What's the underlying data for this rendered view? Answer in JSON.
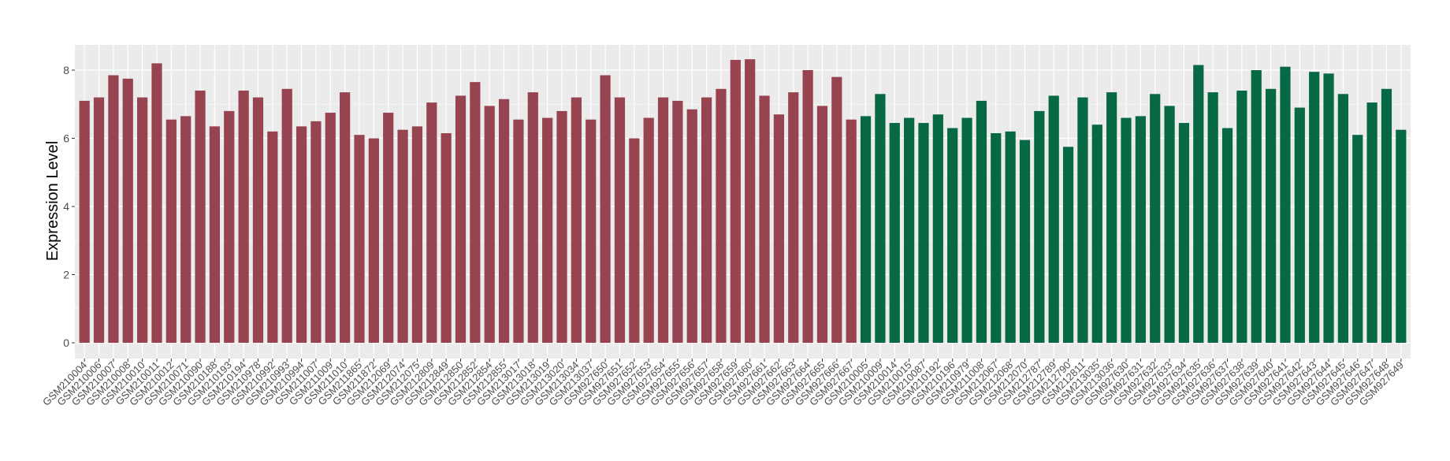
{
  "chart_data": {
    "type": "bar",
    "title": "",
    "xlabel": "",
    "ylabel": "Expression Level",
    "ylim": [
      0,
      8.6
    ],
    "yticks": [
      0,
      2,
      4,
      6,
      8
    ],
    "grid": true,
    "legend": "none",
    "colors": {
      "group1": "#984450",
      "group2": "#076944",
      "panel": "#EBEBEB",
      "grid": "#FFFFFF"
    },
    "categories": [
      "GSM210004",
      "GSM210006",
      "GSM210007",
      "GSM210008",
      "GSM210010",
      "GSM210011",
      "GSM210012",
      "GSM210071",
      "GSM210090",
      "GSM210188",
      "GSM210193",
      "GSM210194",
      "GSM210978",
      "GSM210992",
      "GSM210993",
      "GSM210994",
      "GSM211007",
      "GSM211009",
      "GSM211010",
      "GSM211865",
      "GSM211872",
      "GSM212069",
      "GSM212074",
      "GSM212075",
      "GSM212809",
      "GSM212849",
      "GSM212850",
      "GSM212852",
      "GSM212854",
      "GSM212855",
      "GSM213017",
      "GSM213018",
      "GSM213019",
      "GSM213020",
      "GSM213034",
      "GSM213037",
      "GSM927650",
      "GSM927651",
      "GSM927652",
      "GSM927653",
      "GSM927654",
      "GSM927655",
      "GSM927656",
      "GSM927657",
      "GSM927658",
      "GSM927659",
      "GSM927660",
      "GSM927661",
      "GSM927662",
      "GSM927663",
      "GSM927664",
      "GSM927665",
      "GSM927666",
      "GSM927667",
      "GSM210005",
      "GSM210009",
      "GSM210014",
      "GSM210015",
      "GSM210087",
      "GSM210192",
      "GSM210196",
      "GSM210979",
      "GSM211008",
      "GSM212067",
      "GSM212068",
      "GSM212070",
      "GSM212787",
      "GSM212789",
      "GSM212790",
      "GSM212811",
      "GSM213035",
      "GSM213036",
      "GSM927630",
      "GSM927631",
      "GSM927632",
      "GSM927633",
      "GSM927634",
      "GSM927635",
      "GSM927636",
      "GSM927637",
      "GSM927638",
      "GSM927639",
      "GSM927640",
      "GSM927641",
      "GSM927642",
      "GSM927643",
      "GSM927644",
      "GSM927645",
      "GSM927646",
      "GSM927647",
      "GSM927648",
      "GSM927649"
    ],
    "values": [
      7.1,
      7.2,
      7.85,
      7.75,
      7.2,
      8.2,
      6.55,
      6.65,
      7.4,
      6.35,
      6.8,
      7.4,
      7.2,
      6.2,
      7.45,
      6.35,
      6.5,
      6.75,
      7.35,
      6.1,
      6.0,
      6.75,
      6.25,
      6.35,
      7.05,
      6.15,
      7.25,
      7.65,
      6.95,
      7.15,
      6.55,
      7.35,
      6.6,
      6.8,
      7.2,
      6.55,
      7.85,
      7.2,
      6.0,
      6.6,
      7.2,
      7.1,
      6.85,
      7.2,
      7.45,
      8.3,
      8.32,
      7.25,
      6.7,
      7.35,
      8.0,
      6.95,
      7.8,
      6.55,
      6.65,
      7.3,
      6.45,
      6.6,
      6.45,
      6.7,
      6.3,
      6.6,
      7.1,
      6.15,
      6.2,
      5.95,
      6.8,
      7.25,
      5.75,
      7.2,
      6.4,
      7.35,
      6.6,
      6.65,
      7.3,
      6.95,
      6.45,
      8.15,
      7.35,
      6.3,
      7.4,
      8.0,
      7.45,
      8.1,
      6.9,
      7.95,
      7.9,
      7.3,
      6.1,
      7.05,
      7.45,
      6.25
    ],
    "groups": [
      "group1",
      "group1",
      "group1",
      "group1",
      "group1",
      "group1",
      "group1",
      "group1",
      "group1",
      "group1",
      "group1",
      "group1",
      "group1",
      "group1",
      "group1",
      "group1",
      "group1",
      "group1",
      "group1",
      "group1",
      "group1",
      "group1",
      "group1",
      "group1",
      "group1",
      "group1",
      "group1",
      "group1",
      "group1",
      "group1",
      "group1",
      "group1",
      "group1",
      "group1",
      "group1",
      "group1",
      "group1",
      "group1",
      "group1",
      "group1",
      "group1",
      "group1",
      "group1",
      "group1",
      "group1",
      "group1",
      "group1",
      "group1",
      "group1",
      "group1",
      "group1",
      "group1",
      "group1",
      "group1",
      "group2",
      "group2",
      "group2",
      "group2",
      "group2",
      "group2",
      "group2",
      "group2",
      "group2",
      "group2",
      "group2",
      "group2",
      "group2",
      "group2",
      "group2",
      "group2",
      "group2",
      "group2",
      "group2",
      "group2",
      "group2",
      "group2",
      "group2",
      "group2",
      "group2",
      "group2",
      "group2",
      "group2",
      "group2",
      "group2",
      "group2",
      "group2",
      "group2",
      "group2",
      "group2",
      "group2",
      "group2",
      "group2"
    ]
  }
}
